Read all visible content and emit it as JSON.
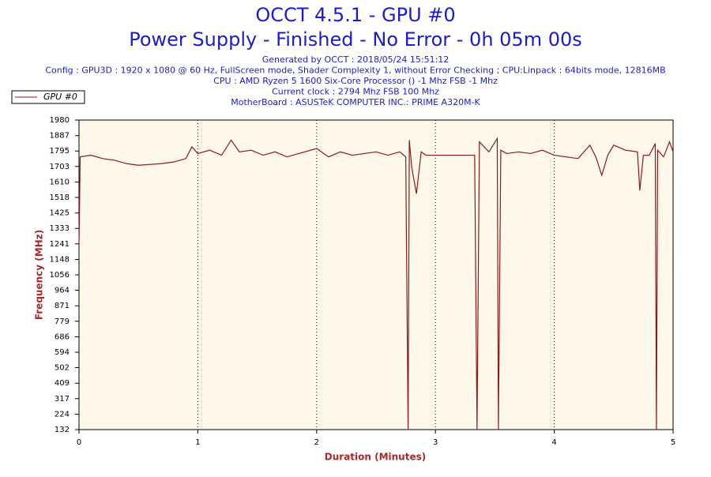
{
  "chart_data": {
    "type": "line",
    "title": "OCCT 4.5.1 - GPU #0",
    "subtitle": "Power Supply - Finished - No Error - 0h 05m 00s",
    "info": [
      "Generated by OCCT : 2018/05/24 15:51:12",
      "Config : GPU3D : 1920 x 1080 @ 60 Hz, FullScreen mode, Shader Complexity 1, without Error Checking ; CPU:Linpack : 64bits mode, 12816MB",
      "CPU : AMD Ryzen 5 1600 Six-Core Processor () -1 Mhz FSB -1 Mhz",
      "Current clock : 2794 Mhz FSB 100 Mhz",
      "MotherBoard : ASUSTeK COMPUTER INC.: PRIME A320M-K"
    ],
    "x_label": "Duration (Minutes)",
    "y_label": "Frequency (MHz)",
    "xlim": [
      0,
      5
    ],
    "xticks": [
      0,
      1,
      2,
      3,
      4,
      5
    ],
    "ylim": [
      132,
      1980
    ],
    "yticks": [
      132,
      224,
      317,
      409,
      502,
      594,
      686,
      779,
      871,
      964,
      1056,
      1148,
      1241,
      1333,
      1425,
      1518,
      1610,
      1703,
      1795,
      1887,
      1980
    ],
    "grid": true,
    "legend": "top-left",
    "x": [
      0,
      0.01,
      0.1,
      0.2,
      0.3,
      0.4,
      0.5,
      0.6,
      0.7,
      0.8,
      0.9,
      0.95,
      1.0,
      1.1,
      1.2,
      1.28,
      1.35,
      1.45,
      1.55,
      1.65,
      1.75,
      1.85,
      2.0,
      2.1,
      2.2,
      2.3,
      2.4,
      2.5,
      2.6,
      2.7,
      2.75,
      2.77,
      2.78,
      2.8,
      2.84,
      2.88,
      2.92,
      3.0,
      3.3,
      3.33,
      3.35,
      3.37,
      3.45,
      3.52,
      3.53,
      3.55,
      3.6,
      3.7,
      3.8,
      3.9,
      4.0,
      4.1,
      4.2,
      4.3,
      4.35,
      4.4,
      4.45,
      4.5,
      4.6,
      4.7,
      4.72,
      4.75,
      4.8,
      4.85,
      4.86,
      4.87,
      4.92,
      4.97,
      5.0
    ],
    "series": [
      {
        "name": "GPU #0",
        "color": "#8b1a1a",
        "values": [
          1241,
          1760,
          1770,
          1750,
          1740,
          1720,
          1710,
          1715,
          1720,
          1730,
          1750,
          1820,
          1780,
          1800,
          1770,
          1860,
          1790,
          1800,
          1770,
          1790,
          1760,
          1780,
          1810,
          1760,
          1790,
          1770,
          1780,
          1790,
          1770,
          1790,
          1760,
          132,
          1860,
          1700,
          1540,
          1790,
          1770,
          1770,
          1770,
          1770,
          132,
          1850,
          1790,
          1870,
          132,
          1800,
          1780,
          1790,
          1780,
          1800,
          1770,
          1760,
          1750,
          1830,
          1760,
          1650,
          1770,
          1830,
          1800,
          1790,
          1560,
          1770,
          1770,
          1840,
          132,
          1800,
          1760,
          1850,
          1790
        ]
      }
    ]
  }
}
